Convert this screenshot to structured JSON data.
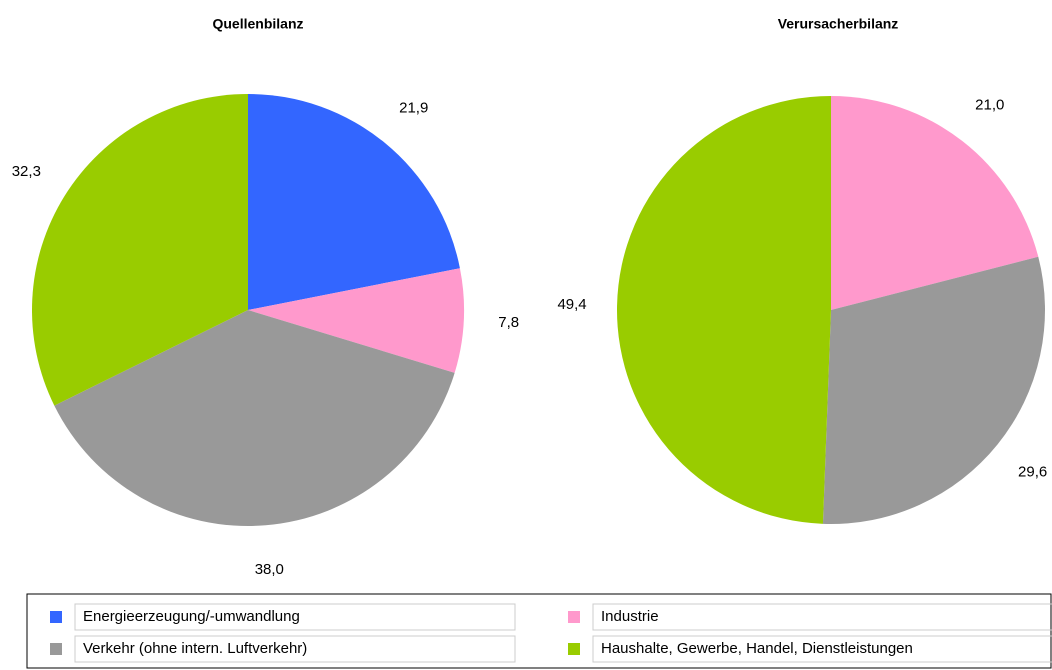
{
  "chart_data": [
    {
      "type": "pie",
      "title": "Quellenbilanz",
      "categories": [
        "Energieerzeugung/-umwandlung",
        "Industrie",
        "Verkehr (ohne intern. Luftverkehr)",
        "Haushalte, Gewerbe, Handel, Dienstleistungen"
      ],
      "values": [
        21.9,
        7.8,
        38.0,
        32.3
      ],
      "value_labels": [
        "21,9",
        "7,8",
        "38,0",
        "32,3"
      ],
      "colors": [
        "#3366ff",
        "#ff99cc",
        "#999999",
        "#99cc00"
      ]
    },
    {
      "type": "pie",
      "title": "Verursacherbilanz",
      "values": [
        21.0,
        29.6,
        49.4
      ],
      "value_labels": [
        "21,0",
        "29,6",
        "49,4"
      ],
      "colors": [
        "#ff99cc",
        "#999999",
        "#99cc00"
      ]
    }
  ]
}
